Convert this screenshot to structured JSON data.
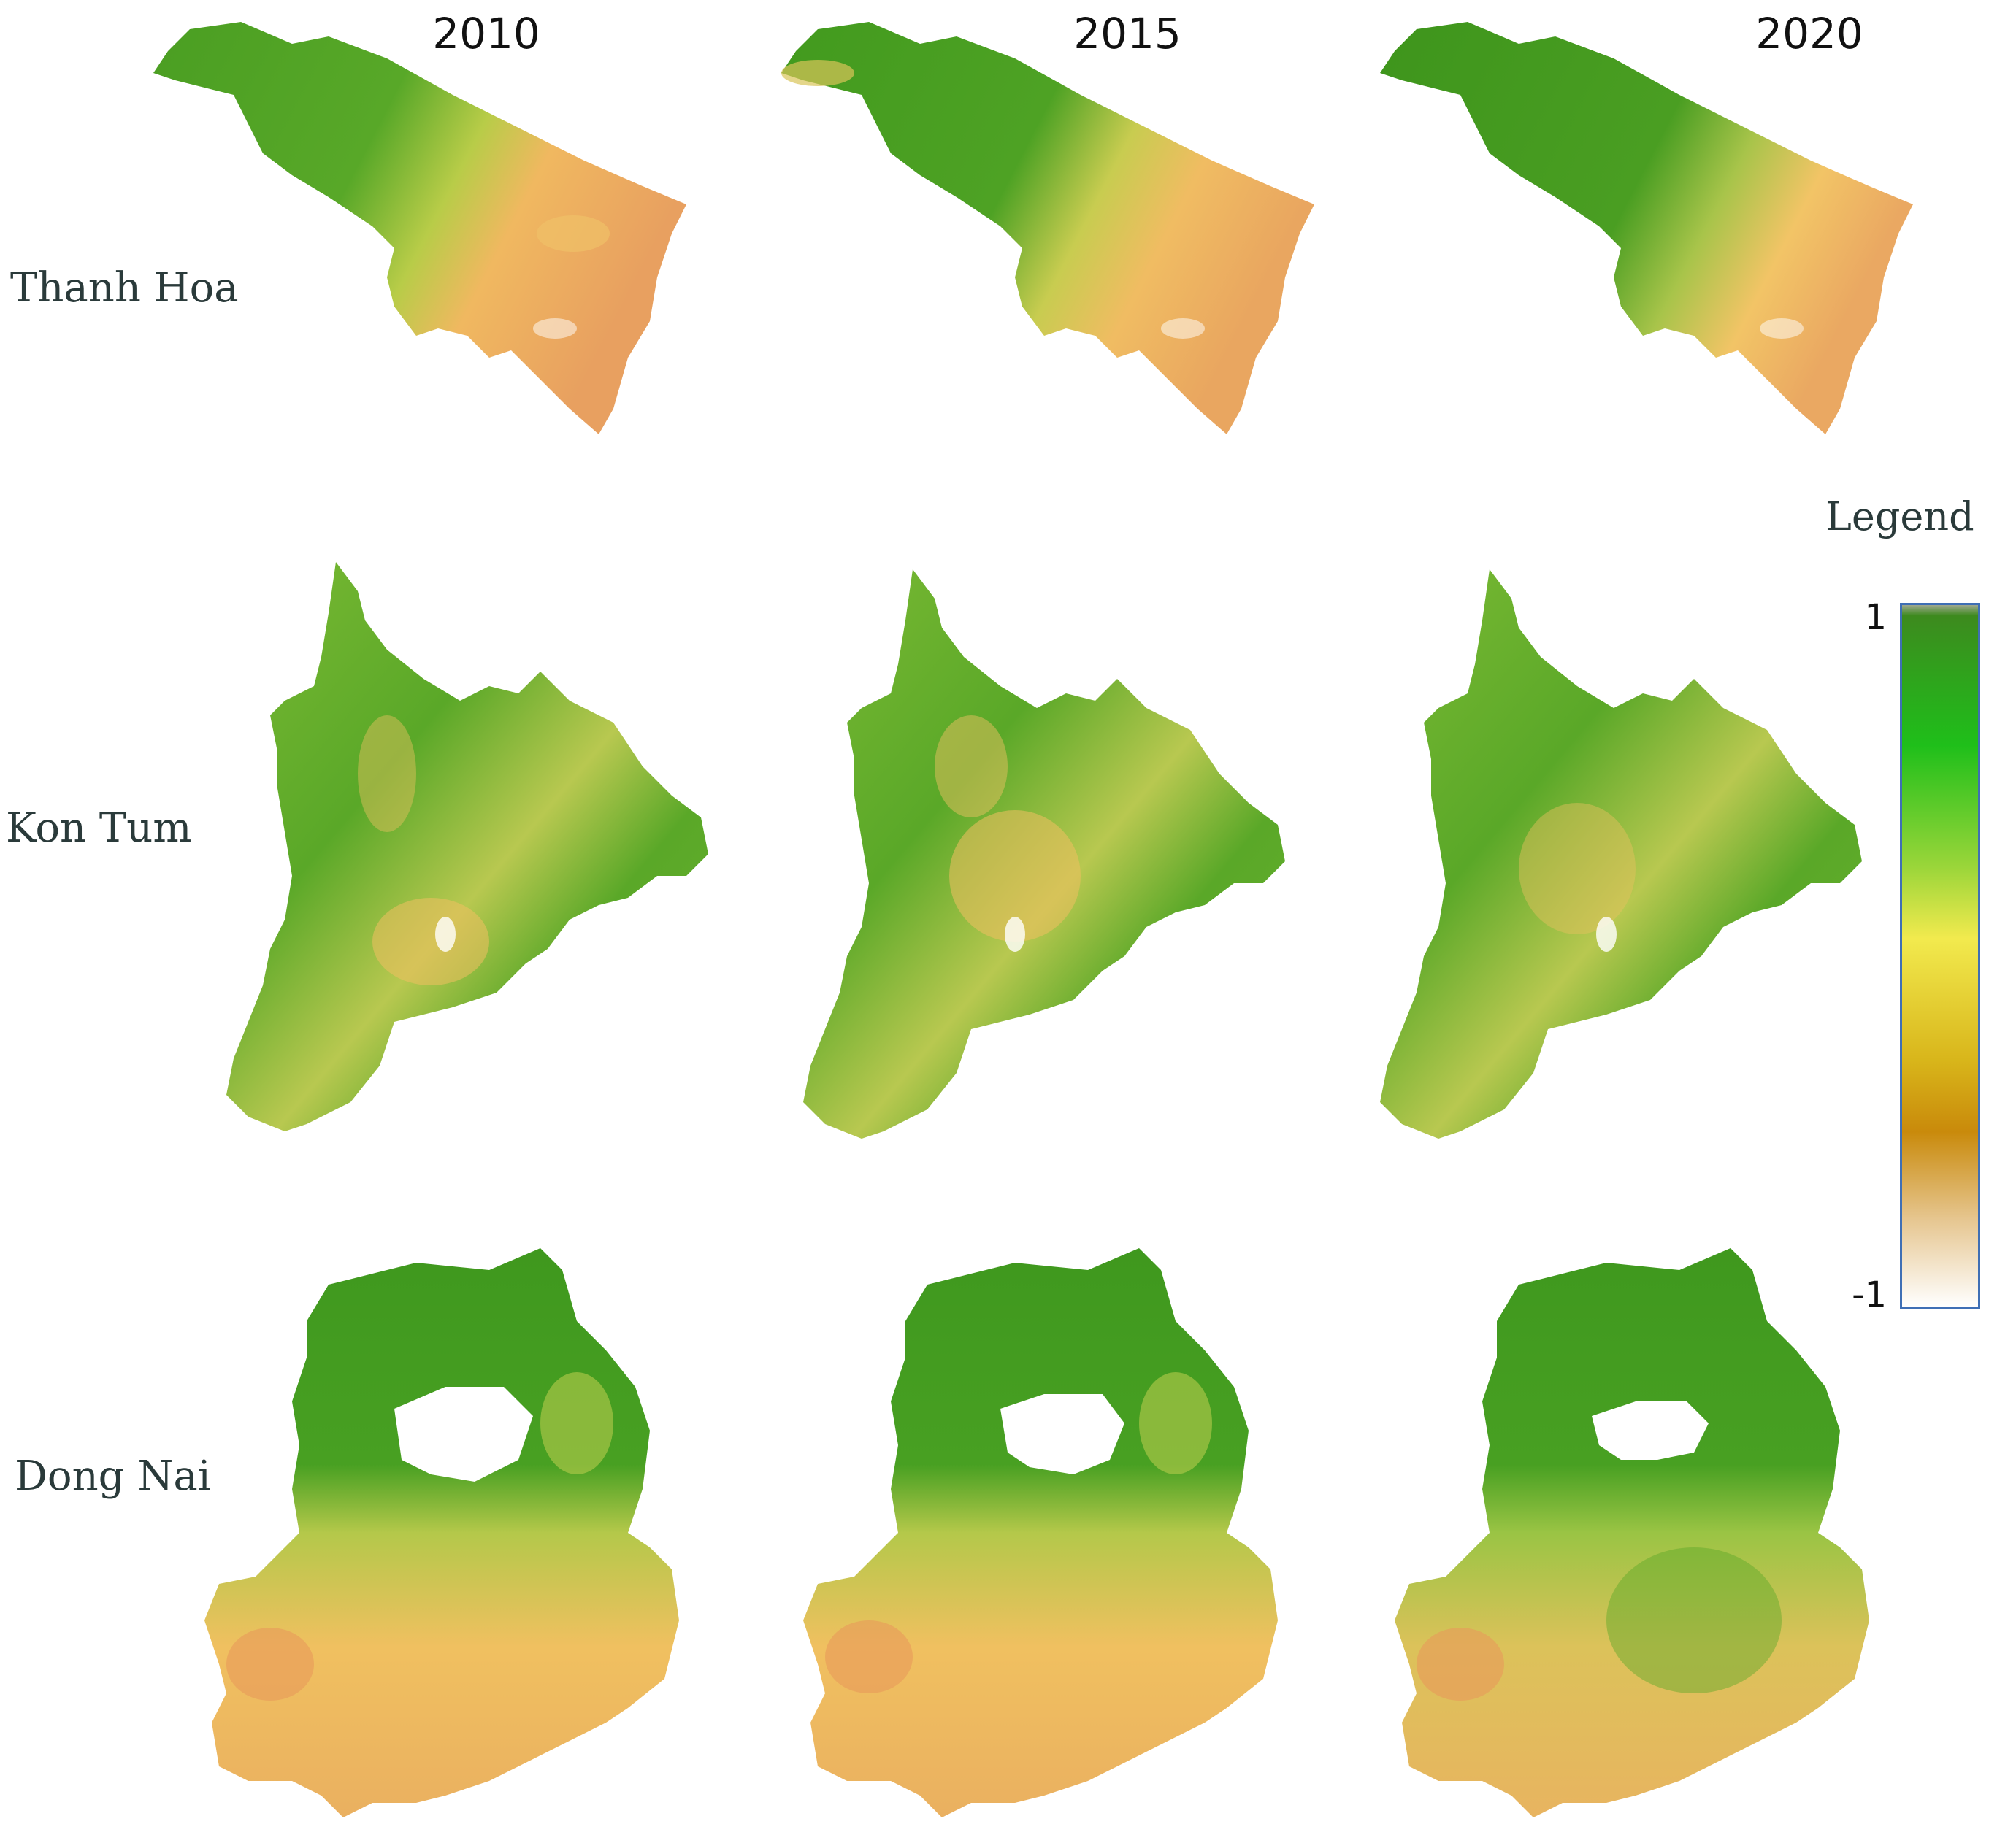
{
  "years": [
    "2010",
    "2015",
    "2020"
  ],
  "provinces": [
    "Thanh Hoa",
    "Kon Tum",
    "Dong Nai"
  ],
  "legend": {
    "title": "Legend",
    "max_label": "1",
    "min_label": "-1",
    "range": [
      -1,
      1
    ],
    "color_stops": [
      {
        "value": 1.0,
        "color": "#9ea88e"
      },
      {
        "value": 0.97,
        "color": "#3d8a1e"
      },
      {
        "value": 0.6,
        "color": "#1fbf1a"
      },
      {
        "value": 0.25,
        "color": "#9cd63a"
      },
      {
        "value": 0.05,
        "color": "#f2ea4e"
      },
      {
        "value": -0.3,
        "color": "#d8b51a"
      },
      {
        "value": -0.5,
        "color": "#c98a0b"
      },
      {
        "value": -0.75,
        "color": "#e6c690"
      },
      {
        "value": -1.0,
        "color": "#ffffff"
      }
    ]
  },
  "colors": {
    "dense_vegetation": "#3f9a1e",
    "mid_vegetation": "#8cc63a",
    "sparse": "#f0c060",
    "bare": "#e89a5a",
    "water": "#ffffff"
  }
}
